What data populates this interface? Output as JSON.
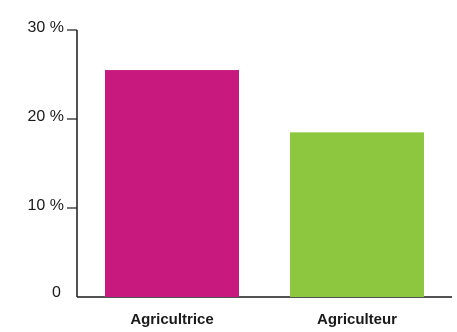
{
  "chart_data": {
    "type": "bar",
    "categories": [
      "Agricultrice",
      "Agriculteur"
    ],
    "values": [
      25.5,
      18.5
    ],
    "colors": [
      "#c8197f",
      "#8dc63f"
    ],
    "ylim": [
      0,
      30
    ],
    "yticks": [
      {
        "value": 0,
        "label": "0"
      },
      {
        "value": 10,
        "label": "10 %"
      },
      {
        "value": 20,
        "label": "20 %"
      },
      {
        "value": 30,
        "label": "30 %"
      }
    ],
    "grid": false,
    "title": "",
    "xlabel": "",
    "ylabel": ""
  }
}
